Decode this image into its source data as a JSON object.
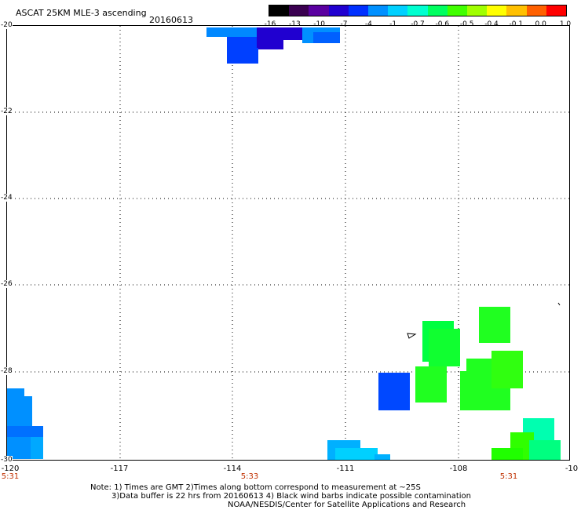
{
  "header": {
    "title": "ASCAT 25KM MLE-3 ascending",
    "date": "20160613"
  },
  "colorbar": {
    "labels": [
      "-16",
      "-13",
      "-10",
      "-7",
      "-4",
      "-1",
      "-0.7",
      "-0.6",
      "-0.5",
      "-0.4",
      "-0.1",
      "0.0",
      "1.0"
    ],
    "colors": [
      "#000000",
      "#3a0050",
      "#5a00a0",
      "#2000d0",
      "#0030ff",
      "#0090ff",
      "#00d0ff",
      "#00ffd0",
      "#00ff60",
      "#40ff00",
      "#a0ff00",
      "#ffff00",
      "#ffc000",
      "#ff6000",
      "#ff0000"
    ]
  },
  "axes": {
    "lat_labels": [
      "-20",
      "-22",
      "-24",
      "-26",
      "-28",
      "-30"
    ],
    "lon_labels": [
      "-120",
      "-117",
      "-114",
      "-111",
      "-108",
      "-10"
    ],
    "time_labels": [
      "5:31",
      "5:33",
      "5:31"
    ]
  },
  "notes": {
    "line1": "Note: 1) Times are GMT 2)Times along bottom correspond to measurement at ~25S",
    "line2": "3)Data buffer is 22 hrs from 20160613 4) Black wind barbs indicate possible contamination",
    "line3": "NOAA/NESDIS/Center for Satellite Applications and Research"
  }
}
